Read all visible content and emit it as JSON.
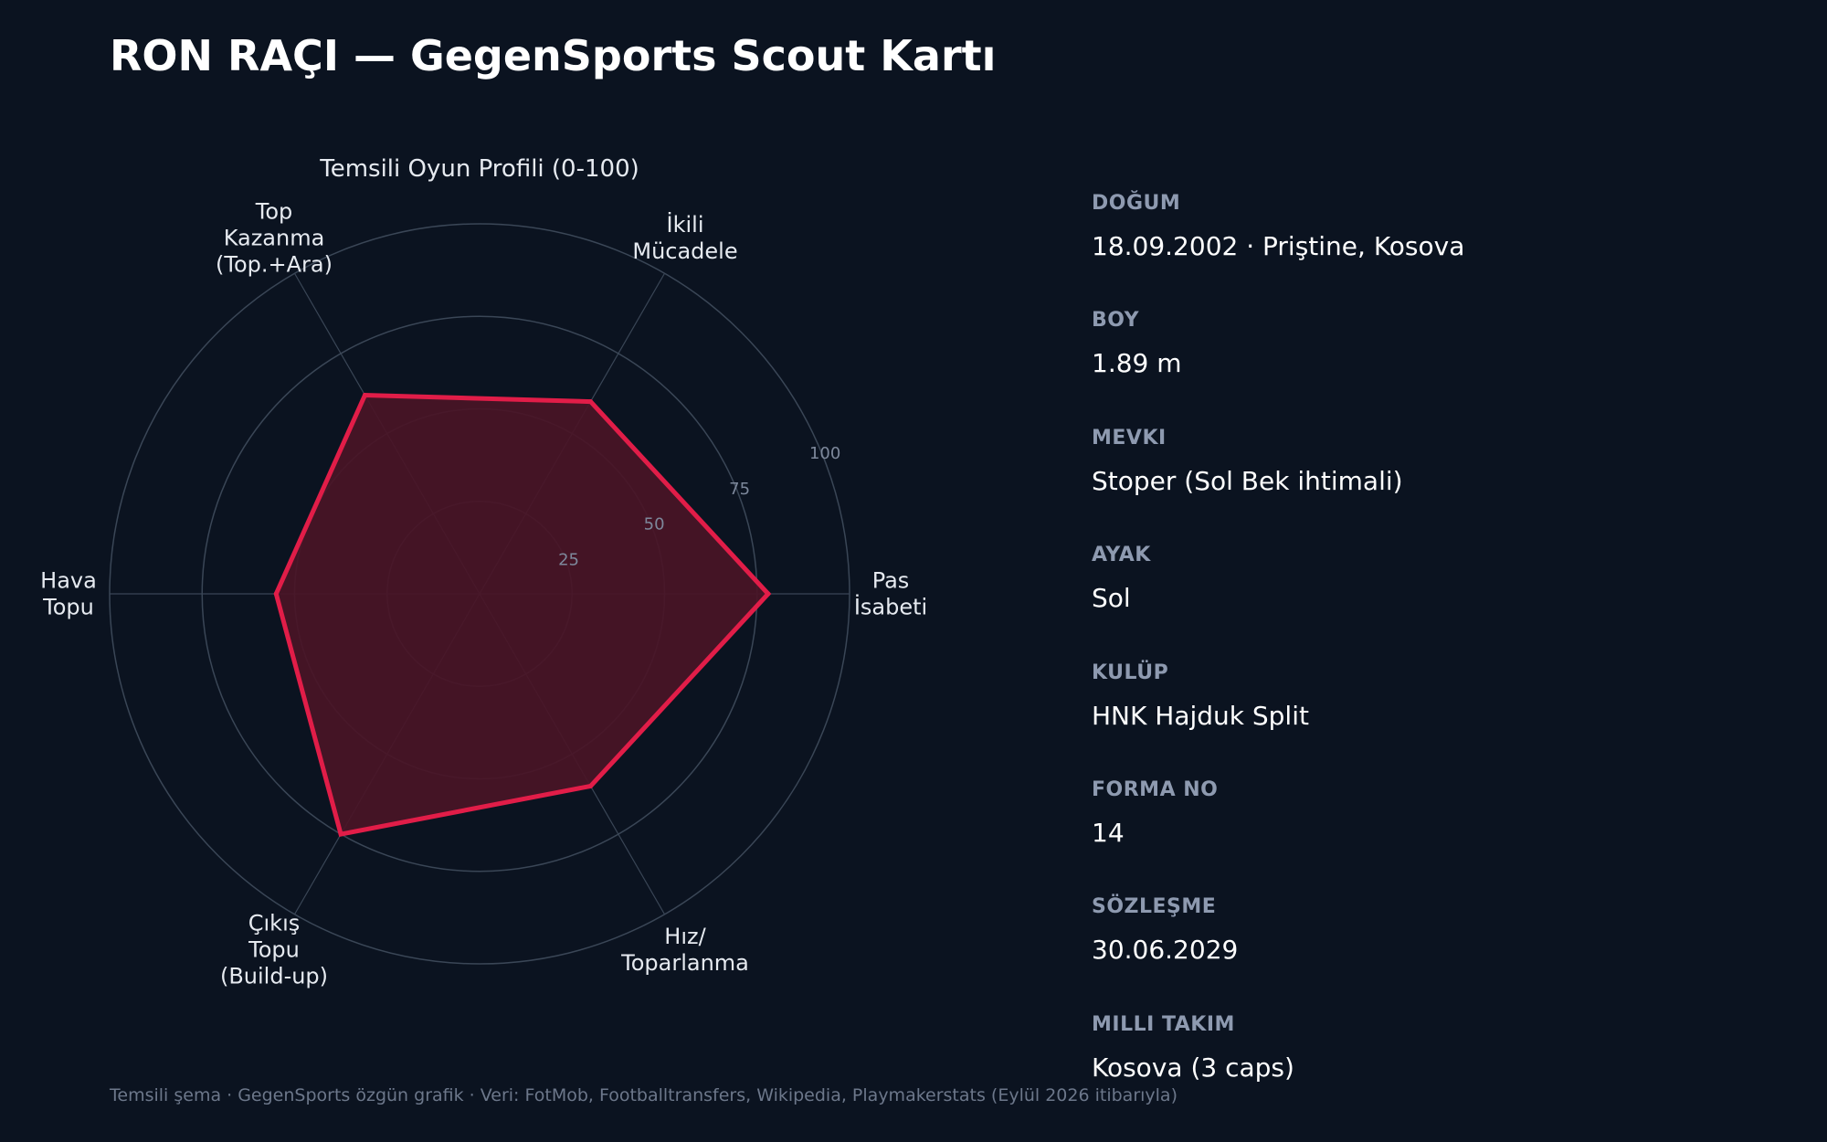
{
  "title": "RON RAÇI — GegenSports Scout Kartı",
  "chart_data": {
    "type": "radar",
    "title": "Temsili Oyun Profili (0-100)",
    "range": [
      0,
      100
    ],
    "ticks": [
      "25",
      "50",
      "75",
      "100"
    ],
    "tick_values": [
      25,
      50,
      75,
      100
    ],
    "axes": [
      {
        "label": [
          "Pas",
          "İsabeti"
        ],
        "value": 78
      },
      {
        "label": [
          "İkili",
          "Mücadele"
        ],
        "value": 60
      },
      {
        "label": [
          "Top",
          "Kazanma",
          "(Top.+Ara)"
        ],
        "value": 62
      },
      {
        "label": [
          "Hava",
          "Topu"
        ],
        "value": 55
      },
      {
        "label": [
          "Çıkış",
          "Topu",
          "(Build-up)"
        ],
        "value": 75
      },
      {
        "label": [
          "Hız/",
          "Toparlanma"
        ],
        "value": 60
      }
    ],
    "series_color": "#e11d48",
    "fill_color": "#4a1526",
    "grid_color": "#3a4656"
  },
  "info": {
    "items": [
      {
        "label": "DOĞUM",
        "value": "18.09.2002 · Priştine, Kosova"
      },
      {
        "label": "BOY",
        "value": "1.89 m"
      },
      {
        "label": "MEVKI",
        "value": "Stoper (Sol Bek ihtimali)"
      },
      {
        "label": "AYAK",
        "value": "Sol"
      },
      {
        "label": "KULÜP",
        "value": "HNK Hajduk Split"
      },
      {
        "label": "FORMA NO",
        "value": "14"
      },
      {
        "label": "SÖZLEŞME",
        "value": "30.06.2029"
      },
      {
        "label": "MILLI TAKIM",
        "value": "Kosova (3 caps)"
      }
    ]
  },
  "footer": "Temsili şema · GegenSports özgün grafik · Veri: FotMob, Footballtransfers, Wikipedia, Playmakerstats (Eylül 2026 itibarıyla)"
}
